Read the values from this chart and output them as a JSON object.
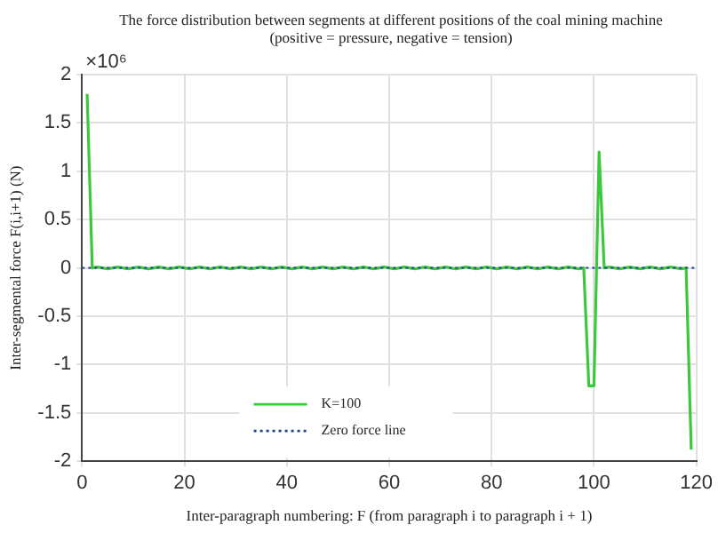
{
  "chart_data": {
    "type": "line",
    "title": "The force distribution between segments at different positions of the coal mining machine (positive = pressure, negative = tension)",
    "xlabel": "Inter-paragraph numbering: F (from paragraph i to paragraph i + 1)",
    "ylabel": "Inter-segmental force F(i,i+1) (N)",
    "annotations": [
      "×10⁶"
    ],
    "xlim": [
      0,
      120
    ],
    "xticks": [
      0,
      20,
      40,
      60,
      80,
      100,
      120
    ],
    "ylim": [
      -2,
      2
    ],
    "yticks": [
      -2,
      -1.5,
      -1,
      -0.5,
      0,
      0.5,
      1,
      1.5,
      2
    ],
    "grid": true,
    "legend": "bottom",
    "marker": "none",
    "series": [
      {
        "name": "K=100",
        "color": "#3cc83c",
        "line_style": "solid",
        "x": [
          1,
          2,
          3,
          4,
          5,
          6,
          7,
          8,
          9,
          10,
          11,
          12,
          13,
          14,
          15,
          16,
          17,
          18,
          19,
          20,
          21,
          22,
          23,
          24,
          25,
          26,
          27,
          28,
          29,
          30,
          31,
          32,
          33,
          34,
          35,
          36,
          37,
          38,
          39,
          40,
          41,
          42,
          43,
          44,
          45,
          46,
          47,
          48,
          49,
          50,
          51,
          52,
          53,
          54,
          55,
          56,
          57,
          58,
          59,
          60,
          61,
          62,
          63,
          64,
          65,
          66,
          67,
          68,
          69,
          70,
          71,
          72,
          73,
          74,
          75,
          76,
          77,
          78,
          79,
          80,
          81,
          82,
          83,
          84,
          85,
          86,
          87,
          88,
          89,
          90,
          91,
          92,
          93,
          94,
          95,
          96,
          97,
          98,
          99,
          100,
          101,
          102,
          103,
          104,
          105,
          106,
          107,
          108,
          109,
          110,
          111,
          112,
          113,
          114,
          115,
          116,
          117,
          118,
          119
        ],
        "values": [
          1.8,
          0,
          0.01,
          0,
          -0.01,
          0,
          0.01,
          0,
          -0.01,
          0,
          0.01,
          0,
          -0.01,
          0,
          0.01,
          0,
          -0.01,
          0,
          0.01,
          0,
          -0.01,
          0,
          0.01,
          0,
          -0.01,
          0,
          0.01,
          0,
          -0.01,
          0,
          0.01,
          0,
          -0.01,
          0,
          0.01,
          0,
          -0.01,
          0,
          0.01,
          0,
          -0.01,
          0,
          0.01,
          0,
          -0.01,
          0,
          0.01,
          0,
          -0.01,
          0,
          0.01,
          0,
          -0.01,
          0,
          0.01,
          0,
          -0.01,
          0,
          0.01,
          0,
          -0.01,
          0,
          0.01,
          0,
          -0.01,
          0,
          0.01,
          0,
          -0.01,
          0,
          0.01,
          0,
          -0.01,
          0,
          0.01,
          0,
          -0.01,
          0,
          0.01,
          0,
          -0.01,
          0,
          0.01,
          0,
          -0.01,
          0,
          0.01,
          0,
          -0.01,
          0,
          0.01,
          0,
          -0.01,
          0,
          0.01,
          0,
          -0.01,
          0,
          -1.22,
          -1.22,
          1.2,
          0,
          0.01,
          0,
          -0.01,
          0,
          0.01,
          0,
          -0.01,
          0,
          0.01,
          0,
          -0.01,
          0,
          0.01,
          0,
          -0.01,
          0,
          -1.88
        ]
      },
      {
        "name": "Zero force line",
        "color": "#1f3f8f",
        "line_style": "dotted",
        "x": [
          0,
          120
        ],
        "values": [
          0,
          0
        ]
      }
    ]
  }
}
